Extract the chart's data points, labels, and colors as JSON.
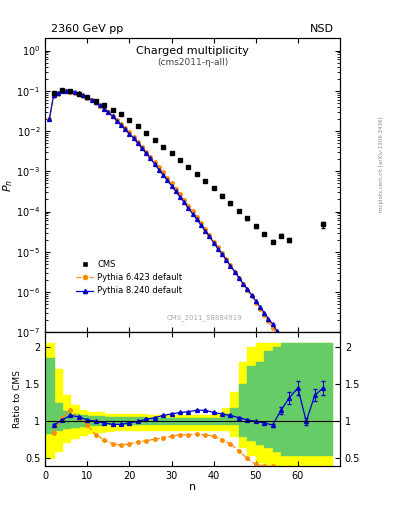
{
  "title_main": "2360 GeV pp",
  "title_right": "NSD",
  "plot_title": "Charged multiplicity",
  "plot_subtitle": "(cms2011-η-all)",
  "watermark": "CMS_2011_S8884919",
  "right_label2": "mcplots.cern.ch [arXiv:1306.3436]",
  "ylabel_top": "P_n",
  "ylabel_bottom": "Ratio to CMS",
  "xlabel": "n",
  "cms_color": "#000000",
  "p6_color": "#ff8c00",
  "p8_color": "#0000cc",
  "cms_n": [
    2,
    4,
    6,
    8,
    10,
    12,
    14,
    16,
    18,
    20,
    22,
    24,
    26,
    28,
    30,
    32,
    34,
    36,
    38,
    40,
    42,
    44,
    46,
    48,
    50,
    52,
    54,
    56,
    58,
    66
  ],
  "cms_p": [
    0.088,
    0.102,
    0.097,
    0.084,
    0.07,
    0.057,
    0.045,
    0.034,
    0.026,
    0.019,
    0.013,
    0.009,
    0.006,
    0.004,
    0.0028,
    0.0019,
    0.0013,
    0.00088,
    0.00058,
    0.00038,
    0.00025,
    0.00016,
    0.000105,
    6.8e-05,
    4.3e-05,
    2.8e-05,
    1.8e-05,
    2.5e-05,
    2e-05,
    4.8e-05
  ],
  "cms_err": [
    0.003,
    0.003,
    0.003,
    0.003,
    0.002,
    0.002,
    0.002,
    0.001,
    0.001,
    0.001,
    0.0005,
    0.0004,
    0.0003,
    0.0002,
    0.00015,
    0.0001,
    8e-05,
    5e-05,
    3.5e-05,
    2.5e-05,
    1.6e-05,
    1.1e-05,
    7e-06,
    5e-06,
    3e-06,
    2e-06,
    1.5e-06,
    2e-06,
    2e-06,
    8e-06
  ],
  "p6_n": [
    1,
    2,
    3,
    4,
    5,
    6,
    7,
    8,
    9,
    10,
    11,
    12,
    13,
    14,
    15,
    16,
    17,
    18,
    19,
    20,
    21,
    22,
    23,
    24,
    25,
    26,
    27,
    28,
    29,
    30,
    31,
    32,
    33,
    34,
    35,
    36,
    37,
    38,
    39,
    40,
    41,
    42,
    43,
    44,
    45,
    46,
    47,
    48,
    49,
    50,
    51,
    52,
    53,
    54,
    55,
    56,
    57,
    58,
    59,
    60,
    61,
    62,
    63,
    64,
    65,
    66,
    67,
    68
  ],
  "p6_p": [
    0.02,
    0.075,
    0.085,
    0.096,
    0.098,
    0.095,
    0.09,
    0.083,
    0.075,
    0.067,
    0.059,
    0.051,
    0.043,
    0.036,
    0.03,
    0.024,
    0.019,
    0.015,
    0.012,
    0.0092,
    0.0071,
    0.0054,
    0.0041,
    0.0031,
    0.0023,
    0.0017,
    0.0013,
    0.00095,
    0.0007,
    0.00051,
    0.00037,
    0.00027,
    0.000195,
    0.00014,
    0.000101,
    7.2e-05,
    5.1e-05,
    3.6e-05,
    2.6e-05,
    1.8e-05,
    1.3e-05,
    9.2e-06,
    6.5e-06,
    4.6e-06,
    3.2e-06,
    2.3e-06,
    1.6e-06,
    1.1e-06,
    8e-07,
    5.5e-07,
    3.9e-07,
    2.7e-07,
    1.9e-07,
    1.3e-07,
    9.2e-08,
    6.4e-08,
    4.4e-08,
    3.1e-08,
    2.1e-08,
    1.5e-08,
    1e-08,
    7e-09,
    4.9e-09,
    3.4e-09,
    2.3e-09,
    1.6e-09,
    1.1e-09,
    7.5e-10
  ],
  "p8_n": [
    1,
    2,
    3,
    4,
    5,
    6,
    7,
    8,
    9,
    10,
    11,
    12,
    13,
    14,
    15,
    16,
    17,
    18,
    19,
    20,
    21,
    22,
    23,
    24,
    25,
    26,
    27,
    28,
    29,
    30,
    31,
    32,
    33,
    34,
    35,
    36,
    37,
    38,
    39,
    40,
    41,
    42,
    43,
    44,
    45,
    46,
    47,
    48,
    49,
    50,
    51,
    52,
    53,
    54,
    55,
    56,
    57,
    58,
    59,
    60,
    61,
    62,
    63,
    64,
    65
  ],
  "p8_p": [
    0.02,
    0.078,
    0.089,
    0.1,
    0.101,
    0.098,
    0.093,
    0.086,
    0.078,
    0.069,
    0.06,
    0.052,
    0.044,
    0.036,
    0.029,
    0.023,
    0.018,
    0.014,
    0.011,
    0.0086,
    0.0066,
    0.005,
    0.0037,
    0.0028,
    0.0021,
    0.0015,
    0.0011,
    0.00082,
    0.0006,
    0.00044,
    0.00032,
    0.00023,
    0.00017,
    0.00012,
    8.8e-05,
    6.4e-05,
    4.6e-05,
    3.3e-05,
    2.4e-05,
    1.7e-05,
    1.2e-05,
    8.8e-06,
    6.3e-06,
    4.5e-06,
    3.2e-06,
    2.3e-06,
    1.6e-06,
    1.2e-06,
    8.5e-07,
    6e-07,
    4.3e-07,
    3.1e-07,
    2.2e-07,
    1.6e-07,
    1.1e-07,
    8e-08,
    5.7e-08,
    4.1e-08,
    2.9e-08,
    2.1e-08,
    1.5e-08,
    1.05e-08,
    7.5e-09,
    5.3e-09,
    3.8e-09
  ],
  "p8_err": [
    0,
    0,
    0,
    0,
    0,
    0,
    0,
    0,
    0,
    0,
    0,
    0,
    0,
    0,
    0,
    0,
    0,
    0,
    0,
    0,
    0,
    0,
    0,
    0,
    0,
    0,
    0,
    0,
    0,
    0,
    0,
    0,
    0,
    0,
    0,
    0,
    0,
    0,
    0,
    0,
    0,
    0,
    0,
    0,
    0,
    0,
    0,
    0,
    0,
    0,
    0,
    0,
    0,
    0,
    0,
    0,
    0,
    0,
    0,
    0,
    0,
    0,
    0,
    0,
    0
  ],
  "ratio_p6_n": [
    2,
    4,
    6,
    8,
    10,
    12,
    14,
    16,
    18,
    20,
    22,
    24,
    26,
    28,
    30,
    32,
    34,
    36,
    38,
    40,
    42,
    44,
    46,
    48,
    50,
    52,
    54
  ],
  "ratio_p6_r": [
    0.85,
    1.05,
    1.15,
    1.05,
    0.95,
    0.82,
    0.75,
    0.7,
    0.68,
    0.7,
    0.72,
    0.74,
    0.76,
    0.78,
    0.8,
    0.82,
    0.82,
    0.83,
    0.82,
    0.8,
    0.75,
    0.7,
    0.6,
    0.5,
    0.42,
    0.4,
    0.4
  ],
  "ratio_p8_n": [
    2,
    4,
    6,
    8,
    10,
    12,
    14,
    16,
    18,
    20,
    22,
    24,
    26,
    28,
    30,
    32,
    34,
    36,
    38,
    40,
    42,
    44,
    46,
    48,
    50,
    52,
    54,
    56,
    58,
    60,
    62,
    64,
    66
  ],
  "ratio_p8_r": [
    0.95,
    1.02,
    1.08,
    1.06,
    1.02,
    1.0,
    0.98,
    0.96,
    0.96,
    0.98,
    1.0,
    1.03,
    1.05,
    1.08,
    1.1,
    1.12,
    1.13,
    1.15,
    1.15,
    1.12,
    1.1,
    1.08,
    1.05,
    1.02,
    1.0,
    0.98,
    0.95,
    1.15,
    1.32,
    1.45,
    1.0,
    1.35,
    1.45
  ],
  "ratio_p8_err": [
    0.01,
    0.01,
    0.01,
    0.01,
    0.01,
    0.01,
    0.01,
    0.01,
    0.01,
    0.01,
    0.01,
    0.01,
    0.01,
    0.01,
    0.01,
    0.01,
    0.01,
    0.01,
    0.01,
    0.01,
    0.01,
    0.01,
    0.01,
    0.01,
    0.01,
    0.01,
    0.02,
    0.05,
    0.08,
    0.1,
    0.05,
    0.08,
    0.1
  ],
  "band_x": [
    0,
    2,
    4,
    6,
    8,
    10,
    12,
    14,
    16,
    18,
    20,
    22,
    24,
    26,
    28,
    30,
    32,
    34,
    36,
    38,
    40,
    42,
    44,
    46,
    48,
    50,
    52,
    54,
    56,
    58,
    60,
    62,
    64,
    68
  ],
  "green_lo": [
    0.85,
    0.88,
    0.91,
    0.93,
    0.94,
    0.95,
    0.95,
    0.96,
    0.96,
    0.96,
    0.96,
    0.96,
    0.97,
    0.97,
    0.97,
    0.97,
    0.97,
    0.97,
    0.97,
    0.97,
    0.97,
    0.97,
    0.97,
    0.8,
    0.75,
    0.7,
    0.65,
    0.6,
    0.55,
    0.55,
    0.55,
    0.55,
    0.55,
    0.55
  ],
  "green_hi": [
    1.85,
    1.25,
    1.14,
    1.1,
    1.08,
    1.07,
    1.07,
    1.06,
    1.06,
    1.06,
    1.06,
    1.06,
    1.05,
    1.05,
    1.05,
    1.05,
    1.05,
    1.05,
    1.05,
    1.05,
    1.05,
    1.1,
    1.18,
    1.5,
    1.75,
    1.8,
    1.95,
    2.0,
    2.05,
    2.05,
    2.05,
    2.05,
    2.05,
    2.05
  ],
  "yellow_lo": [
    0.5,
    0.6,
    0.72,
    0.78,
    0.82,
    0.84,
    0.86,
    0.87,
    0.88,
    0.88,
    0.88,
    0.89,
    0.89,
    0.89,
    0.89,
    0.89,
    0.89,
    0.89,
    0.89,
    0.89,
    0.89,
    0.89,
    0.8,
    0.65,
    0.55,
    0.45,
    0.42,
    0.4,
    0.4,
    0.4,
    0.4,
    0.4,
    0.4,
    0.4
  ],
  "yellow_hi": [
    2.05,
    1.7,
    1.35,
    1.22,
    1.16,
    1.13,
    1.12,
    1.1,
    1.1,
    1.1,
    1.1,
    1.1,
    1.09,
    1.09,
    1.09,
    1.09,
    1.09,
    1.09,
    1.09,
    1.09,
    1.1,
    1.18,
    1.4,
    1.8,
    2.0,
    2.05,
    2.05,
    2.05,
    2.05,
    2.05,
    2.05,
    2.05,
    2.05,
    2.05
  ]
}
